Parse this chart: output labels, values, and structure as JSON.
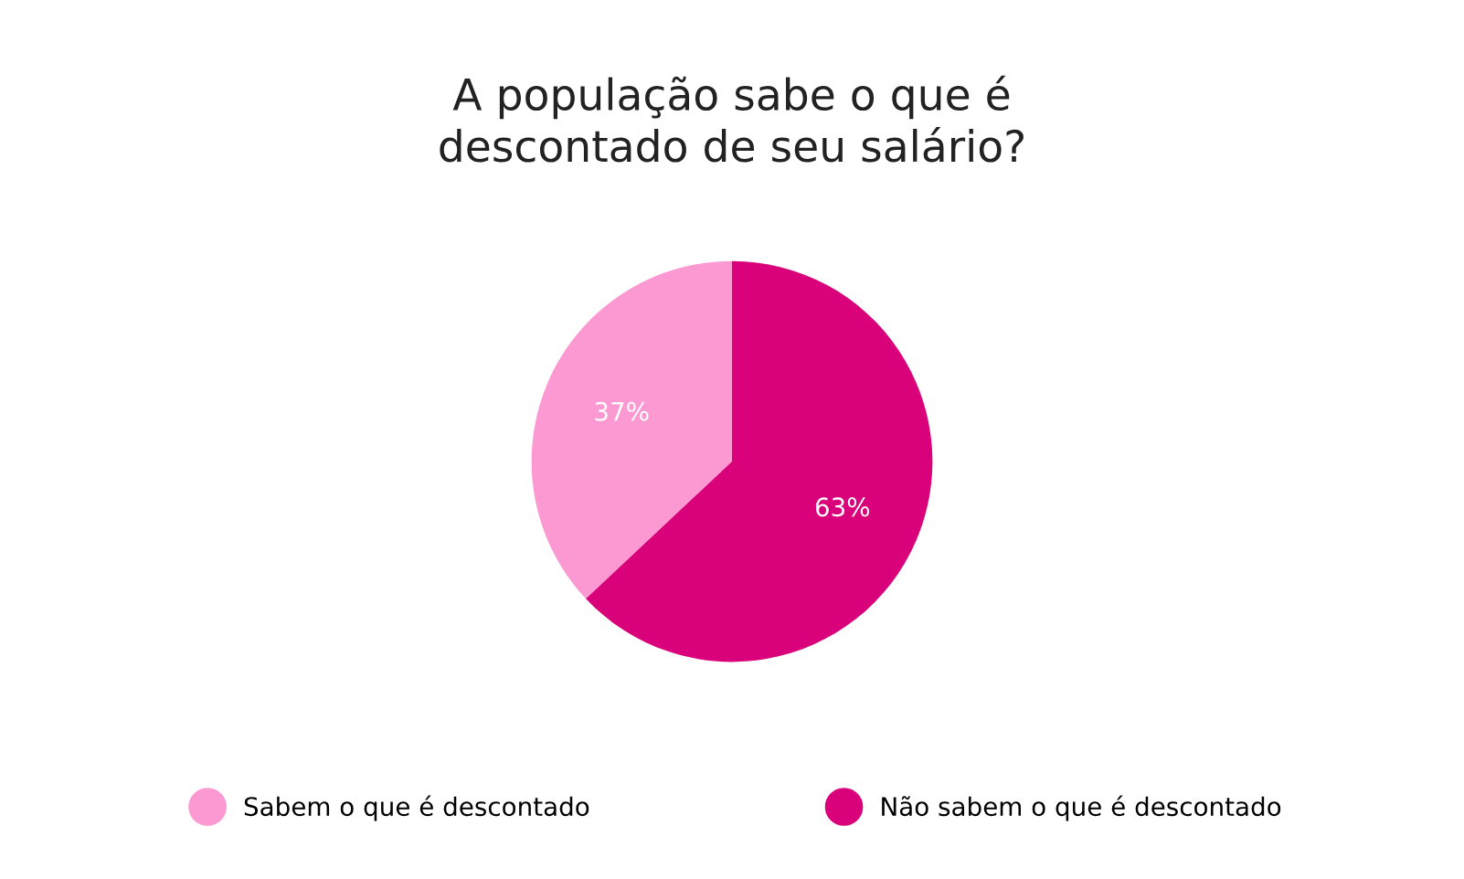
{
  "chart_data": {
    "type": "pie",
    "title": "A população sabe o que é\ndescontado de seu salário?",
    "categories": [
      "Sabem o que é descontado",
      "Não sabem o que é descontado"
    ],
    "values": [
      37,
      63
    ],
    "colors": [
      "#fc98d2",
      "#d9027a"
    ],
    "value_labels": [
      "37%",
      "63%"
    ],
    "legend": "bottom"
  }
}
